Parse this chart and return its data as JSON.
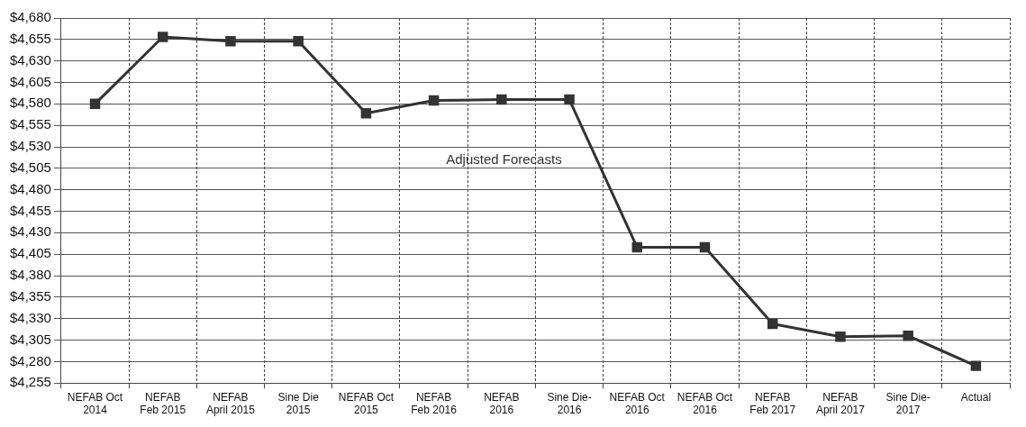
{
  "chart_data": {
    "type": "line",
    "categories": [
      "NEFAB Oct 2014",
      "NEFAB Feb 2015",
      "NEFAB April 2015",
      "Sine Die 2015",
      "NEFAB Oct 2015",
      "NEFAB Feb 2016",
      "NEFAB 2016",
      "Sine Die-2016",
      "NEFAB Oct 2016",
      "NEFAB Oct 2016",
      "NEFAB Feb 2017",
      "NEFAB April 2017",
      "Sine Die-2017",
      "Actual"
    ],
    "series": [
      {
        "color": "#333333",
        "values": [
          4580,
          4658,
          4653,
          4653,
          4569,
          4584,
          4585,
          4585,
          4413,
          4413,
          4324,
          4309,
          4310,
          4275
        ]
      }
    ],
    "ylim": [
      4255,
      4680
    ],
    "yticks": [
      {
        "value": 4255,
        "label": "$4,255"
      },
      {
        "value": 4280,
        "label": "$4,280"
      },
      {
        "value": 4305,
        "label": "$4,305"
      },
      {
        "value": 4330,
        "label": "$4,330"
      },
      {
        "value": 4355,
        "label": "$4,355"
      },
      {
        "value": 4380,
        "label": "$4,380"
      },
      {
        "value": 4405,
        "label": "$4,405"
      },
      {
        "value": 4430,
        "label": "$4,430"
      },
      {
        "value": 4455,
        "label": "$4,455"
      },
      {
        "value": 4480,
        "label": "$4,480"
      },
      {
        "value": 4505,
        "label": "$4,505"
      },
      {
        "value": 4530,
        "label": "$4,530"
      },
      {
        "value": 4555,
        "label": "$4,555"
      },
      {
        "value": 4580,
        "label": "$4,580"
      },
      {
        "value": 4605,
        "label": "$4,605"
      },
      {
        "value": 4630,
        "label": "$4,630"
      },
      {
        "value": 4655,
        "label": "$4,655"
      },
      {
        "value": 4680,
        "label": "$4,680"
      }
    ],
    "annotations": [
      "Adjusted Forecasts"
    ],
    "grid": true,
    "legend": false,
    "marker": "square",
    "line_style": "solid"
  }
}
